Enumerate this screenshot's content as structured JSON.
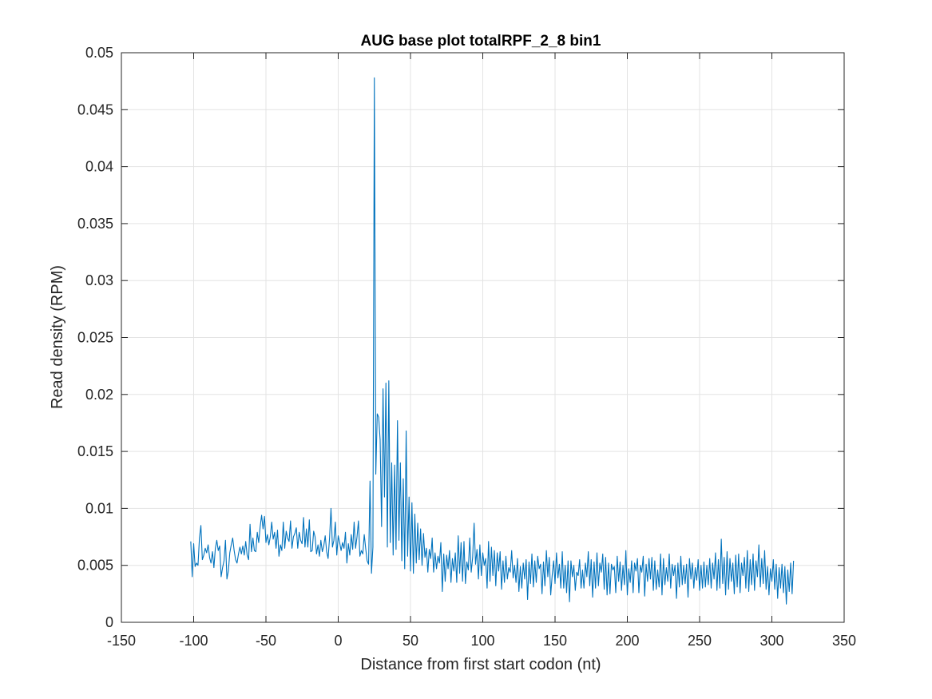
{
  "chart_data": {
    "type": "line",
    "title": "AUG base plot totalRPF_2_8 bin1",
    "xlabel": "Distance from first start codon (nt)",
    "ylabel": "Read density (RPM)",
    "xlim": [
      -150,
      350
    ],
    "ylim": [
      0,
      0.05
    ],
    "xticks": [
      -150,
      -100,
      -50,
      0,
      50,
      100,
      150,
      200,
      250,
      300,
      350
    ],
    "yticks": [
      0,
      0.005,
      0.01,
      0.015,
      0.02,
      0.025,
      0.03,
      0.035,
      0.04,
      0.045,
      0.05
    ],
    "xtick_labels": [
      "-150",
      "-100",
      "-50",
      "0",
      "50",
      "100",
      "150",
      "200",
      "250",
      "300",
      "350"
    ],
    "ytick_labels": [
      "0",
      "0.005",
      "0.01",
      "0.015",
      "0.02",
      "0.025",
      "0.03",
      "0.035",
      "0.04",
      "0.045",
      "0.05"
    ],
    "grid": true,
    "line_color": "#0072BD",
    "series": [
      {
        "x_start": -102,
        "x_step": 1,
        "values": [
          0.0071,
          0.004,
          0.0069,
          0.0049,
          0.0052,
          0.005,
          0.0074,
          0.0085,
          0.0055,
          0.0059,
          0.0065,
          0.0061,
          0.0068,
          0.0057,
          0.0052,
          0.0062,
          0.0048,
          0.0065,
          0.0072,
          0.0063,
          0.0067,
          0.004,
          0.0048,
          0.0054,
          0.0072,
          0.0038,
          0.0045,
          0.0061,
          0.0068,
          0.0074,
          0.0063,
          0.0055,
          0.0052,
          0.006,
          0.0066,
          0.006,
          0.0067,
          0.0059,
          0.0071,
          0.0059,
          0.0055,
          0.0086,
          0.0062,
          0.0074,
          0.0063,
          0.0062,
          0.0079,
          0.007,
          0.0084,
          0.0094,
          0.0082,
          0.0093,
          0.007,
          0.0077,
          0.0068,
          0.0075,
          0.0088,
          0.0073,
          0.0079,
          0.0065,
          0.0081,
          0.0058,
          0.0068,
          0.0063,
          0.0088,
          0.0065,
          0.008,
          0.0074,
          0.0071,
          0.0089,
          0.0065,
          0.0075,
          0.0078,
          0.0083,
          0.0065,
          0.0079,
          0.0072,
          0.0069,
          0.0092,
          0.0066,
          0.0082,
          0.0066,
          0.009,
          0.0062,
          0.0063,
          0.008,
          0.0075,
          0.006,
          0.0068,
          0.0058,
          0.0072,
          0.0062,
          0.0067,
          0.0076,
          0.0062,
          0.0056,
          0.0074,
          0.01,
          0.0066,
          0.0072,
          0.0088,
          0.0059,
          0.0076,
          0.007,
          0.0063,
          0.007,
          0.0065,
          0.0079,
          0.0052,
          0.0069,
          0.0059,
          0.0077,
          0.0064,
          0.0088,
          0.0065,
          0.0075,
          0.0089,
          0.0058,
          0.0063,
          0.006,
          0.0077,
          0.0065,
          0.0054,
          0.0051,
          0.0124,
          0.0043,
          0.0066,
          0.0478,
          0.013,
          0.0183,
          0.018,
          0.016,
          0.0084,
          0.0205,
          0.011,
          0.021,
          0.0066,
          0.0212,
          0.007,
          0.014,
          0.0059,
          0.0138,
          0.0064,
          0.0177,
          0.0072,
          0.014,
          0.0054,
          0.0126,
          0.0047,
          0.0168,
          0.0058,
          0.011,
          0.0045,
          0.0105,
          0.0043,
          0.0095,
          0.0052,
          0.0087,
          0.0055,
          0.0082,
          0.005,
          0.0078,
          0.0057,
          0.0065,
          0.0044,
          0.0064,
          0.0056,
          0.0074,
          0.0044,
          0.0061,
          0.0047,
          0.0058,
          0.0052,
          0.007,
          0.0027,
          0.006,
          0.0036,
          0.0059,
          0.0047,
          0.0063,
          0.0035,
          0.0056,
          0.0045,
          0.0061,
          0.0035,
          0.0076,
          0.0043,
          0.007,
          0.0036,
          0.0071,
          0.0034,
          0.0053,
          0.0046,
          0.0074,
          0.0044,
          0.0057,
          0.0087,
          0.0051,
          0.0064,
          0.0038,
          0.0068,
          0.0041,
          0.0061,
          0.005,
          0.0056,
          0.003,
          0.0071,
          0.0036,
          0.0066,
          0.0041,
          0.0063,
          0.0032,
          0.0061,
          0.0045,
          0.0062,
          0.0029,
          0.0054,
          0.0035,
          0.0058,
          0.0038,
          0.0048,
          0.0044,
          0.0063,
          0.0039,
          0.005,
          0.0035,
          0.0056,
          0.0027,
          0.0049,
          0.003,
          0.0052,
          0.0038,
          0.0055,
          0.002,
          0.0053,
          0.0034,
          0.006,
          0.0031,
          0.0054,
          0.0035,
          0.0058,
          0.0047,
          0.0051,
          0.0025,
          0.0053,
          0.0032,
          0.0063,
          0.004,
          0.0057,
          0.0024,
          0.0041,
          0.0054,
          0.0034,
          0.0061,
          0.0039,
          0.0051,
          0.003,
          0.0062,
          0.003,
          0.005,
          0.0026,
          0.0054,
          0.0018,
          0.0054,
          0.004,
          0.005,
          0.0028,
          0.0044,
          0.0041,
          0.0055,
          0.003,
          0.0046,
          0.003,
          0.0052,
          0.004,
          0.0062,
          0.0032,
          0.0055,
          0.0022,
          0.0053,
          0.003,
          0.0061,
          0.0032,
          0.0052,
          0.0044,
          0.006,
          0.0029,
          0.0057,
          0.0024,
          0.0052,
          0.0025,
          0.0051,
          0.0046,
          0.0049,
          0.0026,
          0.0058,
          0.0036,
          0.0053,
          0.0028,
          0.005,
          0.0033,
          0.0063,
          0.0024,
          0.0047,
          0.0035,
          0.0054,
          0.0026,
          0.0052,
          0.0045,
          0.0056,
          0.0026,
          0.005,
          0.0044,
          0.0058,
          0.0023,
          0.0051,
          0.0036,
          0.0056,
          0.0038,
          0.0057,
          0.0028,
          0.0054,
          0.0029,
          0.0046,
          0.0031,
          0.006,
          0.0024,
          0.0056,
          0.0033,
          0.0048,
          0.0036,
          0.006,
          0.003,
          0.0051,
          0.0041,
          0.005,
          0.0021,
          0.0052,
          0.0031,
          0.0058,
          0.0033,
          0.005,
          0.0034,
          0.0051,
          0.0022,
          0.0056,
          0.0038,
          0.0052,
          0.003,
          0.0048,
          0.0037,
          0.0055,
          0.0028,
          0.005,
          0.003,
          0.0053,
          0.0031,
          0.005,
          0.0033,
          0.0056,
          0.003,
          0.0052,
          0.0038,
          0.0061,
          0.0028,
          0.0055,
          0.003,
          0.0073,
          0.0034,
          0.0057,
          0.0024,
          0.0062,
          0.0029,
          0.0056,
          0.0036,
          0.0052,
          0.0025,
          0.0059,
          0.0031,
          0.006,
          0.0026,
          0.0052,
          0.0041,
          0.0057,
          0.003,
          0.0063,
          0.0027,
          0.0055,
          0.0033,
          0.006,
          0.0028,
          0.0054,
          0.004,
          0.0068,
          0.0031,
          0.0056,
          0.0034,
          0.0063,
          0.0029,
          0.0049,
          0.0024,
          0.0047,
          0.0036,
          0.0055,
          0.0029,
          0.0051,
          0.0021,
          0.0048,
          0.003,
          0.0051,
          0.0026,
          0.0049,
          0.0016,
          0.0046,
          0.0027,
          0.0052,
          0.0025,
          0.0054
        ]
      }
    ]
  }
}
